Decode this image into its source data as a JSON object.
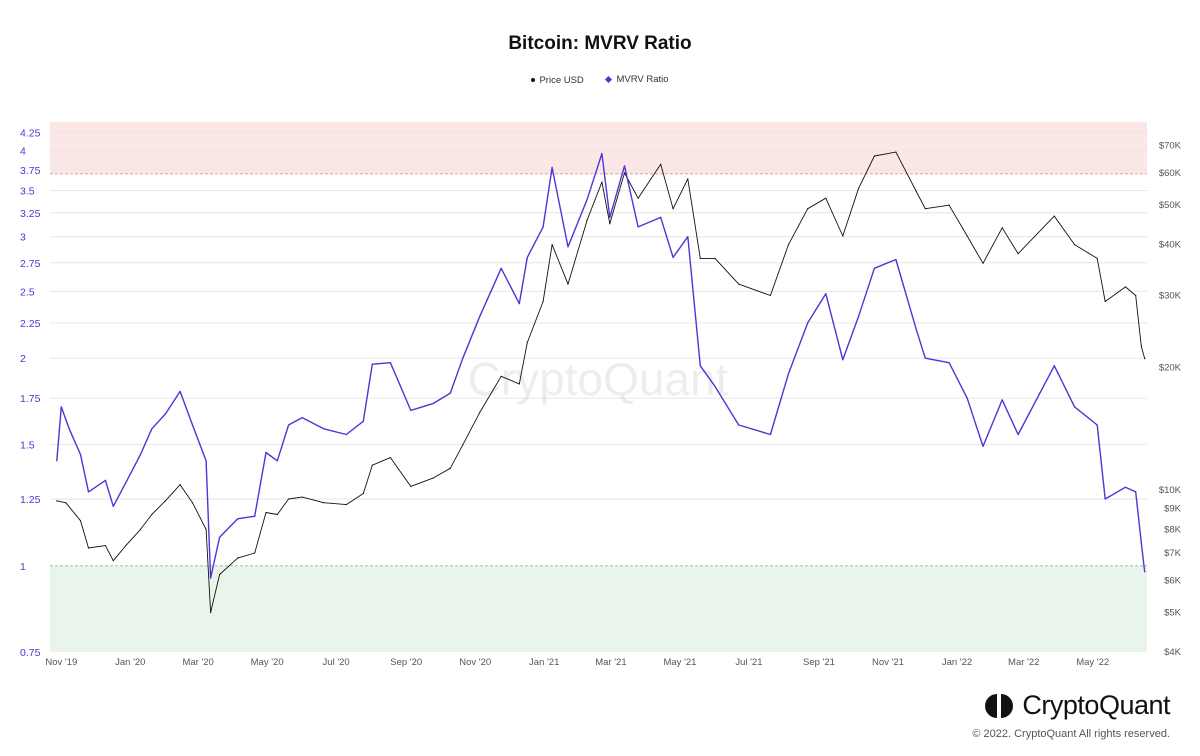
{
  "chart_data": {
    "type": "line",
    "title": "Bitcoin: MVRV Ratio",
    "watermark": "CryptoQuant",
    "legend_position": "top-center",
    "series": [
      {
        "name": "Price USD",
        "color": "#111111",
        "axis": "right",
        "points": [
          [
            "2019-10-28",
            9400
          ],
          [
            "2019-11-05",
            9300
          ],
          [
            "2019-11-18",
            8400
          ],
          [
            "2019-11-25",
            7200
          ],
          [
            "2019-12-10",
            7300
          ],
          [
            "2019-12-17",
            6700
          ],
          [
            "2019-12-28",
            7300
          ],
          [
            "2020-01-10",
            8000
          ],
          [
            "2020-01-20",
            8700
          ],
          [
            "2020-02-01",
            9400
          ],
          [
            "2020-02-14",
            10300
          ],
          [
            "2020-02-25",
            9300
          ],
          [
            "2020-03-08",
            8000
          ],
          [
            "2020-03-12",
            5000
          ],
          [
            "2020-03-20",
            6200
          ],
          [
            "2020-04-05",
            6800
          ],
          [
            "2020-04-20",
            7000
          ],
          [
            "2020-04-30",
            8800
          ],
          [
            "2020-05-10",
            8700
          ],
          [
            "2020-05-20",
            9500
          ],
          [
            "2020-06-01",
            9600
          ],
          [
            "2020-06-20",
            9300
          ],
          [
            "2020-07-10",
            9200
          ],
          [
            "2020-07-25",
            9800
          ],
          [
            "2020-08-02",
            11500
          ],
          [
            "2020-08-18",
            12000
          ],
          [
            "2020-09-05",
            10200
          ],
          [
            "2020-09-25",
            10700
          ],
          [
            "2020-10-10",
            11300
          ],
          [
            "2020-10-21",
            12900
          ],
          [
            "2020-11-05",
            15500
          ],
          [
            "2020-11-24",
            19000
          ],
          [
            "2020-12-10",
            18200
          ],
          [
            "2020-12-17",
            23000
          ],
          [
            "2020-12-31",
            29000
          ],
          [
            "2021-01-08",
            40000
          ],
          [
            "2021-01-22",
            32000
          ],
          [
            "2021-02-08",
            46000
          ],
          [
            "2021-02-21",
            57000
          ],
          [
            "2021-02-28",
            45000
          ],
          [
            "2021-03-13",
            60000
          ],
          [
            "2021-03-25",
            52000
          ],
          [
            "2021-04-14",
            63000
          ],
          [
            "2021-04-25",
            49000
          ],
          [
            "2021-05-08",
            58000
          ],
          [
            "2021-05-19",
            37000
          ],
          [
            "2021-06-01",
            37000
          ],
          [
            "2021-06-22",
            32000
          ],
          [
            "2021-07-20",
            30000
          ],
          [
            "2021-08-05",
            40000
          ],
          [
            "2021-08-22",
            49000
          ],
          [
            "2021-09-07",
            52000
          ],
          [
            "2021-09-22",
            42000
          ],
          [
            "2021-10-06",
            55000
          ],
          [
            "2021-10-20",
            66000
          ],
          [
            "2021-11-08",
            67500
          ],
          [
            "2021-11-26",
            54000
          ],
          [
            "2021-12-04",
            49000
          ],
          [
            "2021-12-25",
            50000
          ],
          [
            "2022-01-10",
            42000
          ],
          [
            "2022-01-24",
            36000
          ],
          [
            "2022-02-10",
            44000
          ],
          [
            "2022-02-24",
            38000
          ],
          [
            "2022-03-28",
            47000
          ],
          [
            "2022-04-15",
            40000
          ],
          [
            "2022-05-05",
            37000
          ],
          [
            "2022-05-12",
            29000
          ],
          [
            "2022-05-30",
            31500
          ],
          [
            "2022-06-08",
            30000
          ],
          [
            "2022-06-13",
            22500
          ],
          [
            "2022-06-16",
            21000
          ]
        ]
      },
      {
        "name": "MVRV Ratio",
        "color": "#4e35d6",
        "axis": "left",
        "points": [
          [
            "2019-10-28",
            1.42
          ],
          [
            "2019-11-01",
            1.7
          ],
          [
            "2019-11-08",
            1.58
          ],
          [
            "2019-11-18",
            1.45
          ],
          [
            "2019-11-25",
            1.28
          ],
          [
            "2019-12-10",
            1.33
          ],
          [
            "2019-12-17",
            1.22
          ],
          [
            "2019-12-28",
            1.32
          ],
          [
            "2020-01-10",
            1.45
          ],
          [
            "2020-01-20",
            1.58
          ],
          [
            "2020-02-01",
            1.66
          ],
          [
            "2020-02-14",
            1.79
          ],
          [
            "2020-02-25",
            1.6
          ],
          [
            "2020-03-08",
            1.42
          ],
          [
            "2020-03-12",
            0.96
          ],
          [
            "2020-03-20",
            1.1
          ],
          [
            "2020-04-05",
            1.17
          ],
          [
            "2020-04-20",
            1.18
          ],
          [
            "2020-04-30",
            1.46
          ],
          [
            "2020-05-10",
            1.42
          ],
          [
            "2020-05-20",
            1.6
          ],
          [
            "2020-06-01",
            1.64
          ],
          [
            "2020-06-20",
            1.58
          ],
          [
            "2020-07-10",
            1.55
          ],
          [
            "2020-07-25",
            1.62
          ],
          [
            "2020-08-02",
            1.96
          ],
          [
            "2020-08-18",
            1.97
          ],
          [
            "2020-09-05",
            1.68
          ],
          [
            "2020-09-25",
            1.72
          ],
          [
            "2020-10-10",
            1.78
          ],
          [
            "2020-10-21",
            2.0
          ],
          [
            "2020-11-05",
            2.3
          ],
          [
            "2020-11-24",
            2.7
          ],
          [
            "2020-12-10",
            2.4
          ],
          [
            "2020-12-17",
            2.8
          ],
          [
            "2020-12-31",
            3.1
          ],
          [
            "2021-01-08",
            3.78
          ],
          [
            "2021-01-22",
            2.9
          ],
          [
            "2021-02-08",
            3.4
          ],
          [
            "2021-02-21",
            3.96
          ],
          [
            "2021-02-28",
            3.2
          ],
          [
            "2021-03-13",
            3.8
          ],
          [
            "2021-03-25",
            3.1
          ],
          [
            "2021-04-14",
            3.2
          ],
          [
            "2021-04-25",
            2.8
          ],
          [
            "2021-05-08",
            3.0
          ],
          [
            "2021-05-19",
            1.95
          ],
          [
            "2021-06-01",
            1.82
          ],
          [
            "2021-06-22",
            1.6
          ],
          [
            "2021-07-20",
            1.55
          ],
          [
            "2021-08-05",
            1.9
          ],
          [
            "2021-08-22",
            2.25
          ],
          [
            "2021-09-07",
            2.48
          ],
          [
            "2021-09-22",
            1.99
          ],
          [
            "2021-10-06",
            2.3
          ],
          [
            "2021-10-20",
            2.7
          ],
          [
            "2021-11-08",
            2.78
          ],
          [
            "2021-11-26",
            2.2
          ],
          [
            "2021-12-04",
            2.0
          ],
          [
            "2021-12-25",
            1.97
          ],
          [
            "2022-01-10",
            1.75
          ],
          [
            "2022-01-24",
            1.49
          ],
          [
            "2022-02-10",
            1.74
          ],
          [
            "2022-02-24",
            1.55
          ],
          [
            "2022-03-28",
            1.95
          ],
          [
            "2022-04-15",
            1.7
          ],
          [
            "2022-05-05",
            1.6
          ],
          [
            "2022-05-12",
            1.25
          ],
          [
            "2022-05-30",
            1.3
          ],
          [
            "2022-06-08",
            1.28
          ],
          [
            "2022-06-13",
            1.08
          ],
          [
            "2022-06-16",
            0.98
          ]
        ]
      }
    ],
    "y_left": {
      "scale": "log",
      "range": [
        0.75,
        4.4
      ],
      "ticks": [
        0.75,
        1,
        1.25,
        1.5,
        1.75,
        2,
        2.25,
        2.5,
        2.75,
        3,
        3.25,
        3.5,
        3.75,
        4,
        4.25
      ],
      "tick_labels": [
        "0.75",
        "1",
        "1.25",
        "1.5",
        "1.75",
        "2",
        "2.25",
        "2.5",
        "2.75",
        "3",
        "3.25",
        "3.5",
        "3.75",
        "4",
        "4.25"
      ]
    },
    "y_right": {
      "scale": "log",
      "range": [
        4000,
        80000
      ],
      "ticks": [
        4000,
        5000,
        6000,
        7000,
        8000,
        9000,
        10000,
        20000,
        30000,
        40000,
        50000,
        60000,
        70000
      ],
      "tick_labels": [
        "$4K",
        "$5K",
        "$6K",
        "$7K",
        "$8K",
        "$9K",
        "$10K",
        "$20K",
        "$30K",
        "$40K",
        "$50K",
        "$60K",
        "$70K"
      ]
    },
    "x_axis": {
      "range": [
        "2019-10-22",
        "2022-06-18"
      ],
      "ticks": [
        "2019-11-01",
        "2020-01-01",
        "2020-03-01",
        "2020-05-01",
        "2020-07-01",
        "2020-09-01",
        "2020-11-01",
        "2021-01-01",
        "2021-03-01",
        "2021-05-01",
        "2021-07-01",
        "2021-09-01",
        "2021-11-01",
        "2022-01-01",
        "2022-03-01",
        "2022-05-01"
      ],
      "tick_labels": [
        "Nov '19",
        "Jan '20",
        "Mar '20",
        "May '20",
        "Jul '20",
        "Sep '20",
        "Nov '20",
        "Jan '21",
        "Mar '21",
        "May '21",
        "Jul '21",
        "Sep '21",
        "Nov '21",
        "Jan '22",
        "Mar '22",
        "May '22"
      ]
    },
    "bands": [
      {
        "from": 3.7,
        "to": 4.4,
        "color": "#fbe8e6",
        "line": 3.7,
        "line_color": "#d08a84"
      },
      {
        "from": 0.75,
        "to": 1.0,
        "color": "#e9f5ea",
        "line": 1.0,
        "line_color": "#7fbf8a"
      }
    ],
    "grid": true
  },
  "legend": {
    "price_label": "Price USD",
    "mvrv_label": "MVRV Ratio"
  },
  "brand": {
    "name": "CryptoQuant",
    "copyright": "© 2022. CryptoQuant All rights reserved."
  }
}
